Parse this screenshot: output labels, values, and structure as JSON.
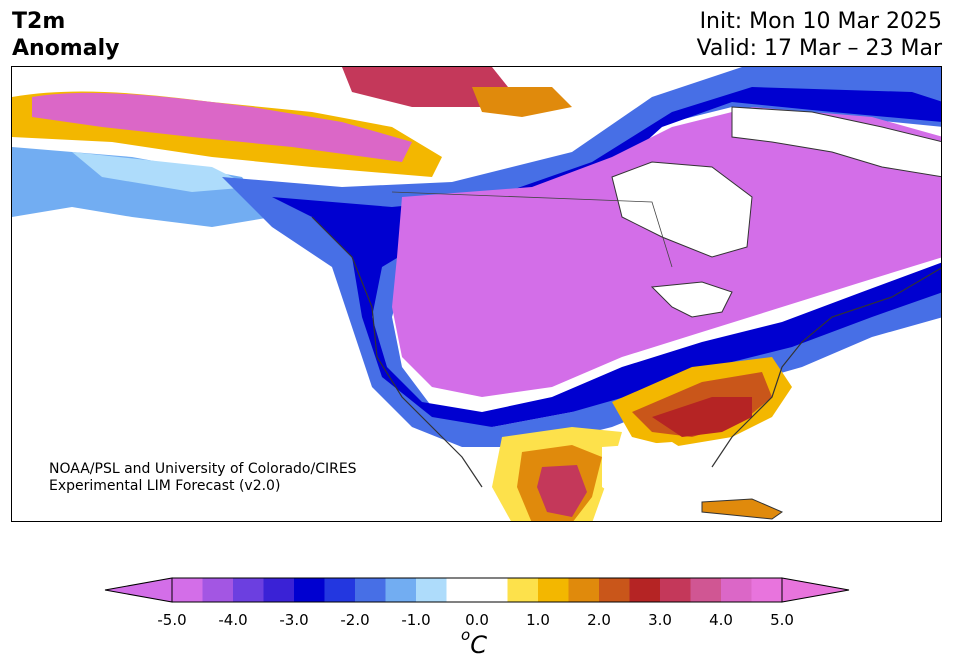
{
  "header": {
    "title_line1": "T2m",
    "title_line2": "Anomaly",
    "init": "Init: Mon 10 Mar 2025",
    "valid": "Valid: 17 Mar – 23 Mar"
  },
  "credit": {
    "line1": "NOAA/PSL and University of Colorado/CIRES",
    "line2": "Experimental LIM Forecast (v2.0)"
  },
  "colorbar": {
    "unit_base": "C",
    "unit_sup": "o",
    "range": [
      -5.0,
      5.0
    ],
    "ticks": [
      "-5.0",
      "-4.0",
      "-3.0",
      "-2.0",
      "-1.0",
      "0.0",
      "1.0",
      "2.0",
      "3.0",
      "4.0",
      "5.0"
    ],
    "colors": [
      "#d36ee8",
      "#a356e3",
      "#6c3fe0",
      "#3a22d6",
      "#0000d0",
      "#2337e0",
      "#476fe6",
      "#72adf2",
      "#aedcfb",
      "#ffffff",
      "#ffffff",
      "#fde14b",
      "#f3b700",
      "#e08a0c",
      "#c9561a",
      "#b52424",
      "#c4385a",
      "#d05693",
      "#db67c7",
      "#e874dd"
    ],
    "extend_low": "#d36ee8",
    "extend_high": "#e874dd"
  }
}
